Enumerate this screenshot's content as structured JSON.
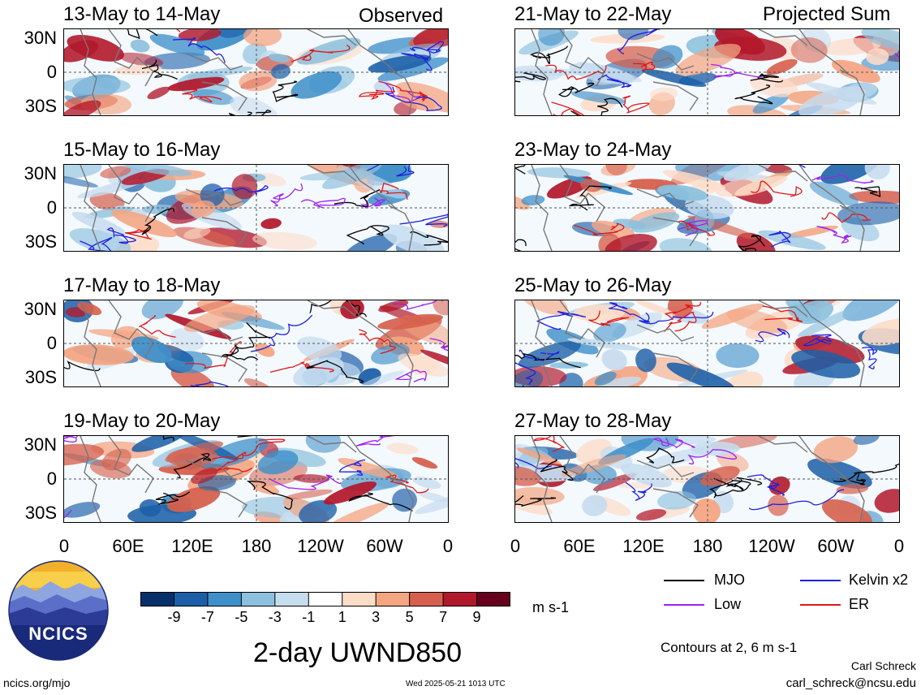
{
  "panels_left": [
    {
      "period": "13-May to 14-May",
      "tag": "Observed"
    },
    {
      "period": "15-May to 16-May",
      "tag": ""
    },
    {
      "period": "17-May to 18-May",
      "tag": ""
    },
    {
      "period": "19-May to 20-May",
      "tag": ""
    }
  ],
  "panels_right": [
    {
      "period": "21-May to 22-May",
      "tag": "Projected Sum"
    },
    {
      "period": "23-May to 24-May",
      "tag": ""
    },
    {
      "period": "25-May to 26-May",
      "tag": ""
    },
    {
      "period": "27-May to 28-May",
      "tag": ""
    }
  ],
  "lat_labels": [
    "30N",
    "0",
    "30S"
  ],
  "lon_labels": [
    "0",
    "60E",
    "120E",
    "180",
    "120W",
    "60W",
    "0"
  ],
  "colorbar": {
    "tick_labels": [
      "-9",
      "-7",
      "-5",
      "-3",
      "-1",
      "1",
      "3",
      "5",
      "7",
      "9"
    ],
    "colors": [
      "#08306b",
      "#1c5fa8",
      "#3f8fc9",
      "#8cc0dd",
      "#c6dcef",
      "#ffffff",
      "#fddcc8",
      "#f4a582",
      "#d6604d",
      "#b2182b",
      "#67001f"
    ],
    "units": "m s-1"
  },
  "legend": {
    "items": [
      {
        "label": "MJO",
        "color": "#000000"
      },
      {
        "label": "Kelvin x2",
        "color": "#1f1fe0"
      },
      {
        "label": "Low",
        "color": "#a020f0"
      },
      {
        "label": "ER",
        "color": "#e01818"
      }
    ],
    "contour_note": "Contours at 2, 6 m s-1"
  },
  "main_title": "2-day UWND850",
  "logo_text": "NCICS",
  "footer": {
    "left": "ncics.org/mjo",
    "center": "Wed 2025-05-21 1013 UTC",
    "author": "Carl Schreck",
    "email": "carl_schreck@ncsu.edu"
  }
}
